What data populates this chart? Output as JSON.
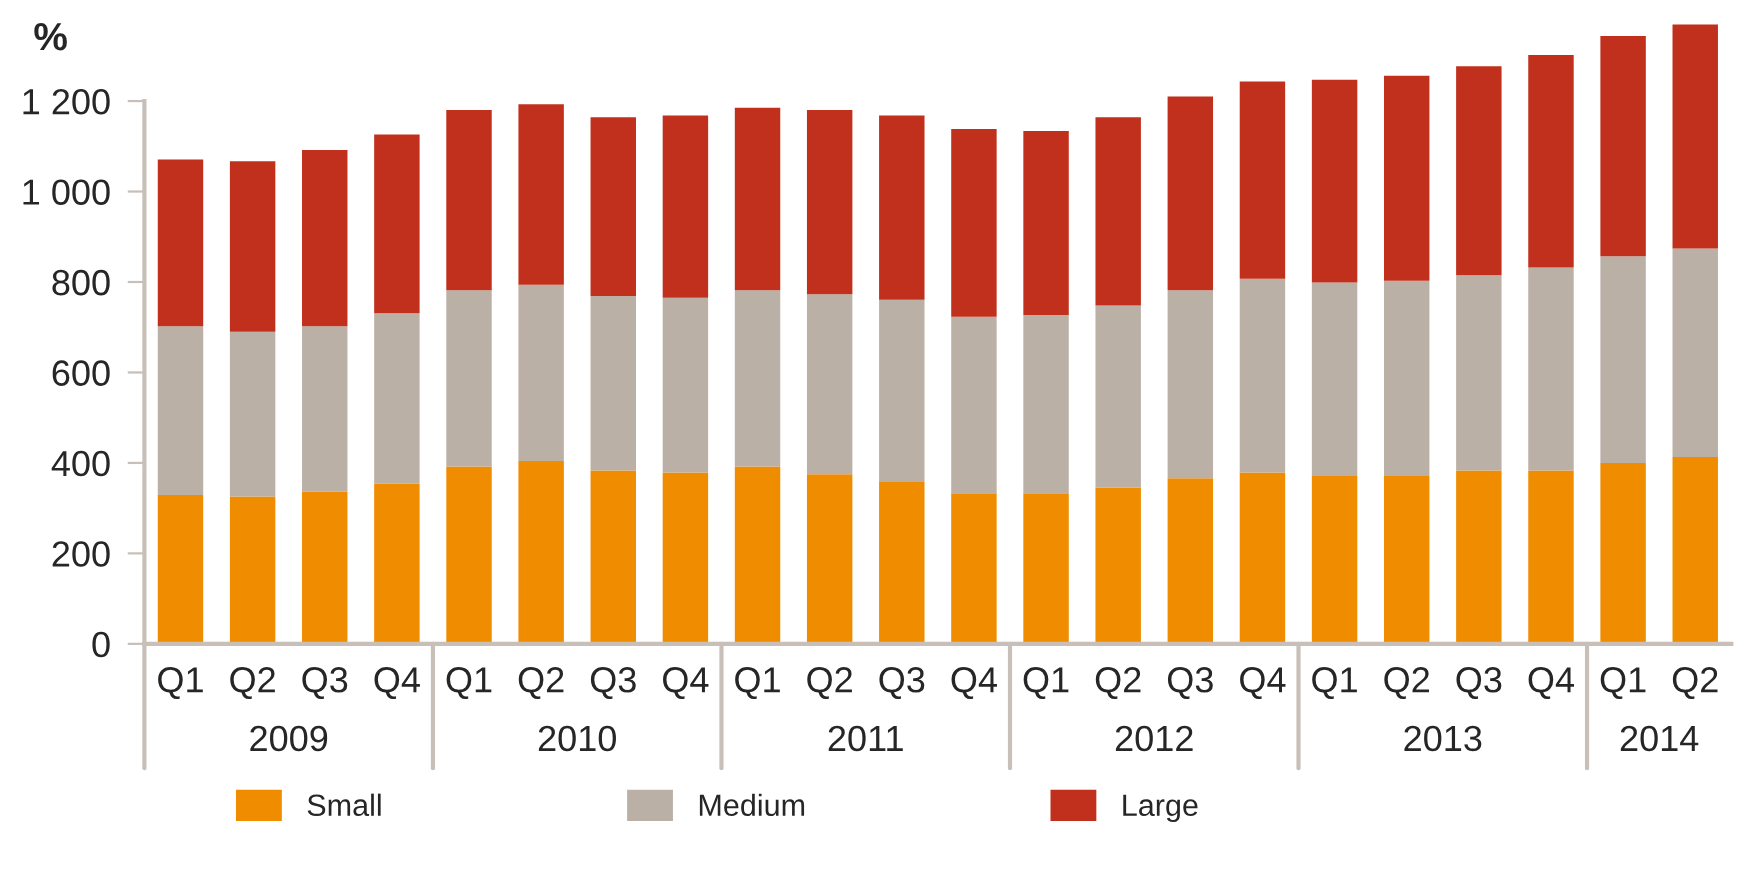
{
  "chart_data": {
    "type": "bar",
    "stacked": true,
    "ylabel": "%",
    "categories": [
      "Q1",
      "Q2",
      "Q3",
      "Q4",
      "Q1",
      "Q2",
      "Q3",
      "Q4",
      "Q1",
      "Q2",
      "Q3",
      "Q4",
      "Q1",
      "Q2",
      "Q3",
      "Q4",
      "Q1",
      "Q2",
      "Q3",
      "Q4",
      "Q1",
      "Q2"
    ],
    "annotations": [
      "2009",
      "2010",
      "2011",
      "2012",
      "2013",
      "2014"
    ],
    "series": [
      {
        "name": "Small",
        "color": "#f08c00",
        "values": [
          329,
          326,
          337,
          354,
          392,
          404,
          383,
          379,
          392,
          375,
          358,
          333,
          333,
          345,
          366,
          379,
          371,
          371,
          383,
          383,
          400,
          413
        ]
      },
      {
        "name": "Medium",
        "color": "#bbb0a6",
        "values": [
          373,
          364,
          365,
          377,
          390,
          390,
          386,
          386,
          390,
          398,
          403,
          390,
          394,
          403,
          416,
          428,
          428,
          432,
          432,
          449,
          457,
          461
        ]
      },
      {
        "name": "Large",
        "color": "#c0301c",
        "values": [
          369,
          377,
          390,
          395,
          398,
          399,
          395,
          403,
          403,
          407,
          407,
          415,
          407,
          416,
          428,
          436,
          448,
          453,
          462,
          470,
          487,
          495
        ]
      }
    ],
    "ylim": [
      0,
      1375
    ],
    "yticks": [
      0,
      200,
      400,
      600,
      800,
      {
        "value": 1000,
        "label": "1 000"
      },
      {
        "value": 1200,
        "label": "1 200"
      }
    ],
    "grid": false,
    "legend": "bottom"
  }
}
